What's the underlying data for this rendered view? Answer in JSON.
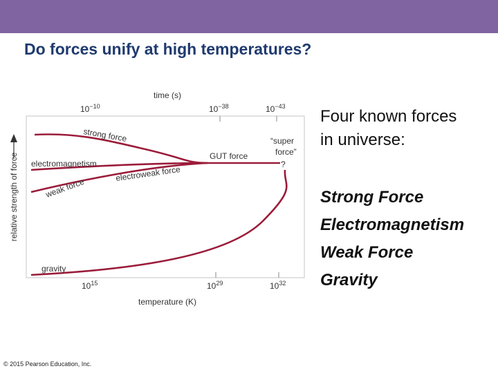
{
  "header": {
    "title": "Do forces unify at high temperatures?"
  },
  "diagram": {
    "top_axis_label": "time (s)",
    "top_ticks": [
      {
        "base": "10",
        "exp": "−10"
      },
      {
        "base": "10",
        "exp": "−38"
      },
      {
        "base": "10",
        "exp": "−43"
      }
    ],
    "bottom_axis_label": "temperature (K)",
    "bottom_ticks": [
      {
        "base": "10",
        "exp": "15"
      },
      {
        "base": "10",
        "exp": "29"
      },
      {
        "base": "10",
        "exp": "32"
      }
    ],
    "y_axis_label": "relative strength of force",
    "labels": {
      "strong": "strong force",
      "em": "electromagnetism",
      "weak": "weak force",
      "gravity": "gravity",
      "electroweak": "electroweak force",
      "gut": "GUT force",
      "super1": "“super",
      "super2": "force”",
      "question": "?"
    }
  },
  "body": {
    "intro": [
      "Four known forces",
      "in universe:"
    ],
    "list": [
      "Strong Force",
      "Electromagnetism",
      "Weak Force",
      "Gravity"
    ]
  },
  "footer": {
    "credit": "© 2015 Pearson Education, Inc."
  }
}
